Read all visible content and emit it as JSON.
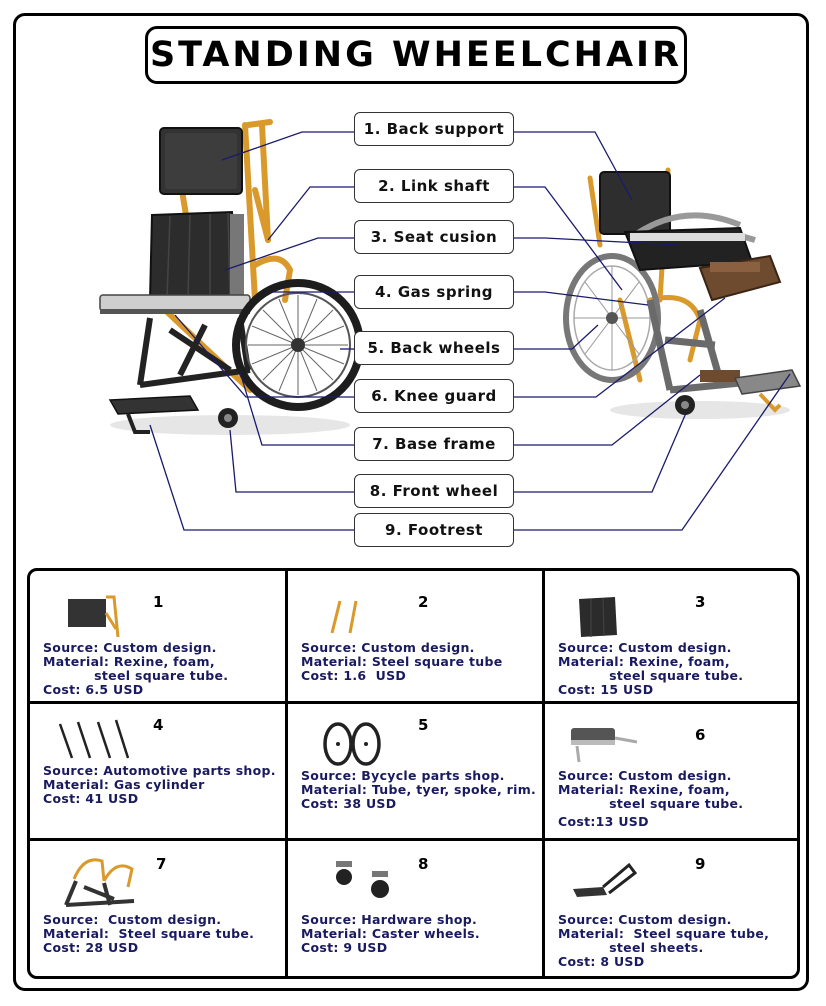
{
  "title": "STANDING WHEELCHAIR",
  "parts": [
    {
      "label": "1. Back support"
    },
    {
      "label": "2. Link shaft"
    },
    {
      "label": "3. Seat cusion"
    },
    {
      "label": "4. Gas spring"
    },
    {
      "label": "5. Back wheels"
    },
    {
      "label": "6. Knee guard"
    },
    {
      "label": "7. Base frame"
    },
    {
      "label": "8. Front wheel"
    },
    {
      "label": "9. Footrest"
    }
  ],
  "cells": [
    {
      "number": "1",
      "source": "Source: Custom design.",
      "material": "Material: Rexine, foam,\n           steel square tube.",
      "cost": "Cost: 6.5 USD"
    },
    {
      "number": "2",
      "source": "Source: Custom design.",
      "material": "Material: Steel square tube",
      "cost": "Cost: 1.6  USD"
    },
    {
      "number": "3",
      "source": "Source: Custom design.",
      "material": "Material: Rexine, foam,\n           steel square tube.",
      "cost": "Cost: 15 USD"
    },
    {
      "number": "4",
      "source": "Source: Automotive parts shop.",
      "material": "Material: Gas cylinder",
      "cost": "Cost: 41 USD"
    },
    {
      "number": "5",
      "source": "Source: Bycycle parts shop.",
      "material": "Material: Tube, tyer, spoke, rim.",
      "cost": "Cost: 38 USD"
    },
    {
      "number": "6",
      "source": "Source: Custom design.",
      "material": "Material: Rexine, foam,\n           steel square tube.",
      "cost": "Cost:13 USD"
    },
    {
      "number": "7",
      "source": "Source:  Custom design.",
      "material": "Material:  Steel square tube.",
      "cost": "Cost: 28 USD"
    },
    {
      "number": "8",
      "source": "Source: Hardware shop.",
      "material": "Material: Caster wheels.",
      "cost": "Cost: 9 USD"
    },
    {
      "number": "9",
      "source": "Source: Custom design.",
      "material": "Material:  Steel square tube,\n           steel sheets.",
      "cost": "Cost: 8 USD"
    }
  ],
  "colors": {
    "frame": "#d99a2b",
    "cushion": "#2b2b2b",
    "leader": "#1a1a6e",
    "text": "#1a1a5e"
  }
}
